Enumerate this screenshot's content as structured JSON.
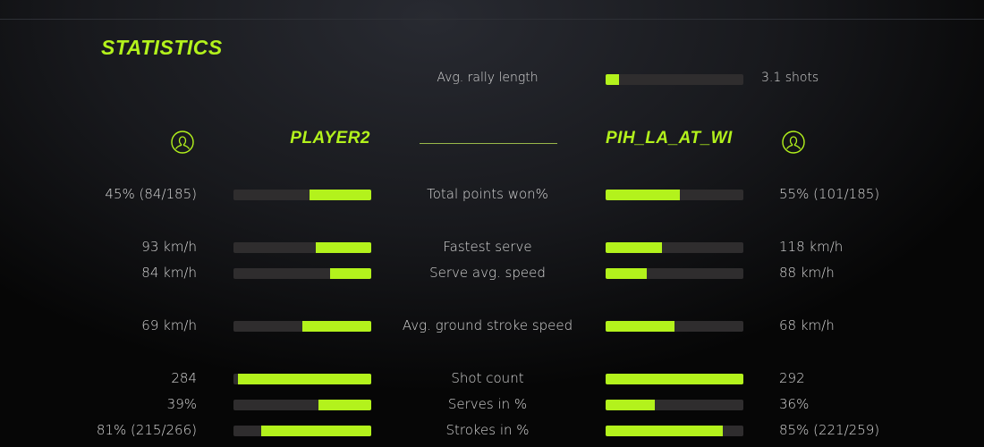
{
  "title": "STATISTICS",
  "accent": "#b3f21c",
  "players": {
    "left": {
      "name": "PLAYER2",
      "icon": "user-circle-icon"
    },
    "right": {
      "name": "PIH_LA_AT_WI",
      "icon": "user-circle-icon"
    }
  },
  "rally": {
    "label": "Avg. rally length",
    "value": "3.1 shots",
    "fill": 0.1
  },
  "stats": [
    {
      "label": "Total points won%",
      "left": "45% (84/185)",
      "right": "55% (101/185)",
      "left_fill": 0.45,
      "right_fill": 0.54
    },
    {
      "label": "Fastest serve",
      "left": "93 km/h",
      "right": "118 km/h",
      "left_fill": 0.4,
      "right_fill": 0.41
    },
    {
      "label": "Serve avg. speed",
      "left": "84 km/h",
      "right": "88 km/h",
      "left_fill": 0.3,
      "right_fill": 0.3
    },
    {
      "label": "Avg. ground stroke speed",
      "left": "69 km/h",
      "right": "68 km/h",
      "left_fill": 0.5,
      "right_fill": 0.5
    },
    {
      "label": "Shot count",
      "left": "284",
      "right": "292",
      "left_fill": 0.97,
      "right_fill": 1.0
    },
    {
      "label": "Serves in %",
      "left": "39%",
      "right": "36%",
      "left_fill": 0.38,
      "right_fill": 0.36
    },
    {
      "label": "Strokes in %",
      "left": "81% (215/266)",
      "right": "85% (221/259)",
      "left_fill": 0.8,
      "right_fill": 0.85
    }
  ]
}
